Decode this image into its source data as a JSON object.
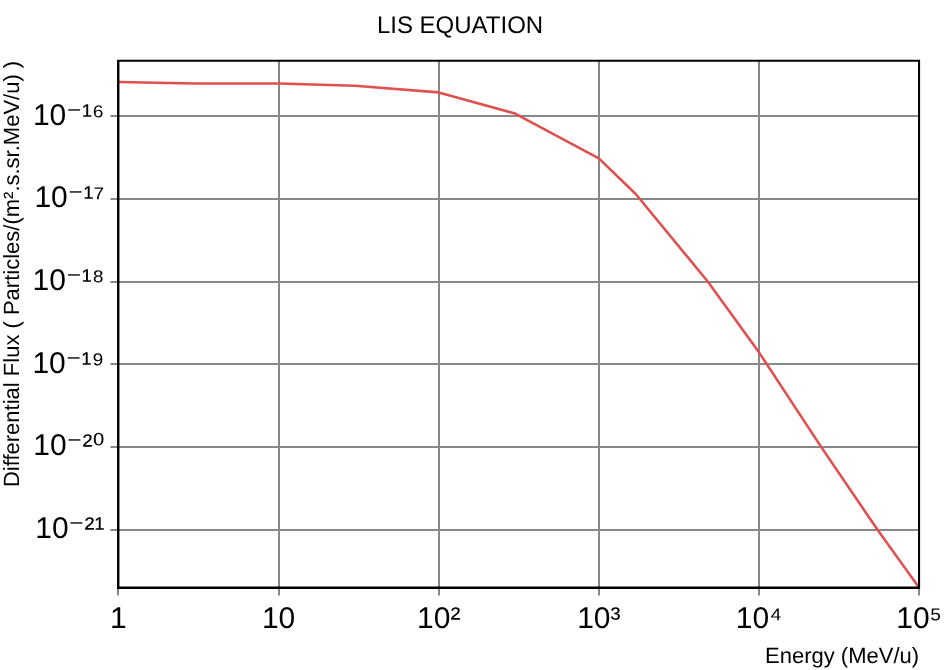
{
  "chart_data": {
    "type": "line",
    "title": "LIS EQUATION",
    "xlabel": "Energy (MeV/u)",
    "ylabel": "Differential Flux ( Particles/(m².s.sr.MeV/u) )",
    "log": "xy",
    "grid": true,
    "legend": false,
    "marker": "none",
    "line_style": "solid",
    "xlim": [
      1,
      100000
    ],
    "ylim": [
      2e-22,
      4.7e-16
    ],
    "xticks": [
      1,
      10,
      {
        "value": 100,
        "label": "10²"
      },
      {
        "value": 1000,
        "label": "10³"
      },
      {
        "value": 10000,
        "label": "10⁴"
      },
      {
        "value": 100000,
        "label": "10⁵"
      }
    ],
    "yticks": [
      {
        "value": 1e-21,
        "label": "10⁻²¹"
      },
      {
        "value": 1e-20,
        "label": "10⁻²⁰"
      },
      {
        "value": 1e-19,
        "label": "10⁻¹⁹"
      },
      {
        "value": 1e-18,
        "label": "10⁻¹⁸"
      },
      {
        "value": 1e-17,
        "label": "10⁻¹⁷"
      },
      {
        "value": 1e-16,
        "label": "10⁻¹⁶"
      }
    ],
    "series": [
      {
        "color": "#e05050",
        "x": [
          1,
          3,
          10,
          30,
          100,
          300,
          1000,
          1700,
          4800,
          10000,
          24500,
          55000,
          100000
        ],
        "values": [
          2.6e-16,
          2.5e-16,
          2.5e-16,
          2.35e-16,
          1.95e-16,
          1.08e-16,
          3.1e-17,
          1.15e-17,
          1e-18,
          1.4e-19,
          1e-20,
          1e-21,
          2e-22
        ]
      }
    ]
  }
}
